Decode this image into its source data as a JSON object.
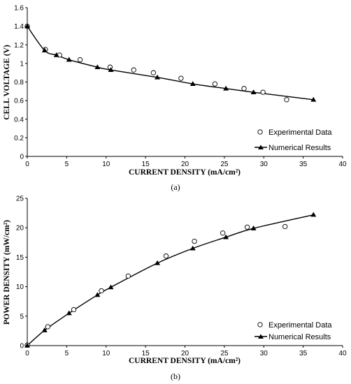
{
  "chart_data": [
    {
      "type": "scatter",
      "caption": "(a)",
      "xlabel": "CURRENT DENSITY (mA/cm²)",
      "ylabel": "CELL VOLTAGE (V)",
      "xlim": [
        0,
        40
      ],
      "ylim": [
        0,
        1.6
      ],
      "x_ticks": [
        "0",
        "5",
        "10",
        "15",
        "20",
        "25",
        "30",
        "35",
        "40"
      ],
      "y_ticks": [
        "0",
        "0.2",
        "0.4",
        "0.6",
        "0.8",
        "1",
        "1.2",
        "1.4",
        "1.6"
      ],
      "grid": false,
      "legend_position": "bottom-right",
      "series": [
        {
          "name": "Experimental Data",
          "marker": "open-circle",
          "color": "#000000",
          "x": [
            0,
            2.3,
            4.1,
            6.7,
            10.5,
            13.5,
            16,
            19.5,
            23.8,
            27.5,
            29.9,
            32.9
          ],
          "y": [
            1.4,
            1.15,
            1.09,
            1.04,
            0.96,
            0.93,
            0.9,
            0.84,
            0.78,
            0.73,
            0.69,
            0.61
          ]
        },
        {
          "name": "Numerical Results",
          "marker": "filled-triangle",
          "color": "#000000",
          "line": true,
          "x": [
            0,
            2.2,
            3.7,
            5.3,
            8.9,
            10.6,
            16.5,
            21,
            25.2,
            28.7,
            36.3
          ],
          "y": [
            1.4,
            1.14,
            1.09,
            1.04,
            0.96,
            0.93,
            0.85,
            0.78,
            0.73,
            0.69,
            0.61
          ]
        }
      ]
    },
    {
      "type": "scatter",
      "caption": "(b)",
      "xlabel": "CURRENT DENSITY (mA/cm²)",
      "ylabel": "POWER DENSITY (mW/cm²)",
      "xlim": [
        0,
        40
      ],
      "ylim": [
        0,
        25
      ],
      "x_ticks": [
        "0",
        "5",
        "10",
        "15",
        "20",
        "25",
        "30",
        "35",
        "40"
      ],
      "y_ticks": [
        "0",
        "5",
        "10",
        "15",
        "20",
        "25"
      ],
      "grid": false,
      "legend_position": "bottom-right",
      "series": [
        {
          "name": "Experimental Data",
          "marker": "open-circle",
          "color": "#000000",
          "x": [
            0,
            2.6,
            5.9,
            9.4,
            12.8,
            17.6,
            21.2,
            24.8,
            27.9,
            32.7
          ],
          "y": [
            0.1,
            3.2,
            6.1,
            9.3,
            11.8,
            15.2,
            17.7,
            19.1,
            20.1,
            20.2
          ]
        },
        {
          "name": "Numerical Results",
          "marker": "filled-triangle",
          "color": "#000000",
          "line": true,
          "x": [
            0,
            2.2,
            5.3,
            8.9,
            10.6,
            16.5,
            21,
            25.2,
            28.7,
            36.3
          ],
          "y": [
            0,
            2.6,
            5.5,
            8.6,
            9.9,
            14,
            16.5,
            18.4,
            19.9,
            22.2
          ]
        }
      ]
    }
  ]
}
